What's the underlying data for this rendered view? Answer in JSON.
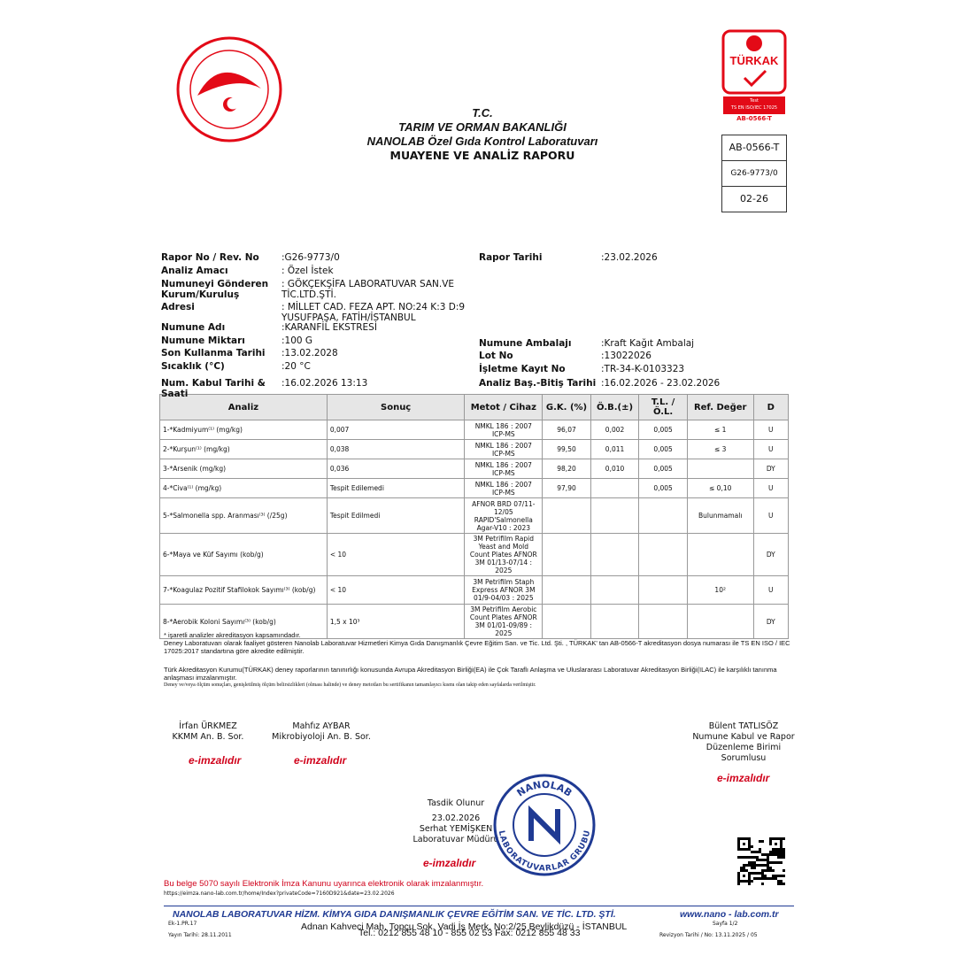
{
  "header": {
    "t_c": "T.C.",
    "ministry": "TARIM VE ORMAN BAKANLIĞI",
    "lab": "NANOLAB Özel Gıda Kontrol Laboratuvarı",
    "report_title": "MUAYENE VE ANALİZ RAPORU"
  },
  "turkak": {
    "name": "TÜRKAK",
    "test": "Test",
    "standard": "TS EN ISO/IEC 17025",
    "code": "AB-0566-T"
  },
  "code_box": [
    "AB-0566-T",
    "G26-9773/0",
    "02-26"
  ],
  "info_left": [
    {
      "label": "Rapor No / Rev. No",
      "value": ":G26-9773/0"
    },
    {
      "label": "Analiz Amacı",
      "value": ": Özel İstek"
    },
    {
      "label": "Numuneyi Gönderen Kurum/Kuruluş",
      "value": ": GÖKÇEKŞİFA LABORATUVAR SAN.VE TİC.LTD.ŞTİ."
    },
    {
      "label": "Adresi",
      "value": ": MİLLET CAD. FEZA APT. NO:24 K:3 D:9 YUSUFPAŞA, FATİH/İSTANBUL"
    },
    {
      "label": "Numune Adı",
      "value": ":KARANFİL EKSTRESİ"
    },
    {
      "label": "Numune Miktarı",
      "value": ":100 G"
    },
    {
      "label": "Son Kullanma Tarihi",
      "value": ":13.02.2028"
    },
    {
      "label": "Sıcaklık (°C)",
      "value": ":20 °C"
    },
    {
      "label": "Num. Kabul Tarihi & Saati",
      "value": ":16.02.2026 13:13"
    }
  ],
  "info_right": [
    {
      "label": "Rapor Tarihi",
      "value": ":23.02.2026"
    },
    {
      "label": "Numune Ambalajı",
      "value": ":Kraft Kağıt Ambalaj"
    },
    {
      "label": "Lot No",
      "value": ":13022026"
    },
    {
      "label": "İşletme Kayıt No",
      "value": ":TR-34-K-0103323"
    },
    {
      "label": "Analiz Baş.-Bitiş Tarihi",
      "value": ":16.02.2026 - 23.02.2026"
    }
  ],
  "table": {
    "headers": [
      "Analiz",
      "Sonuç",
      "Metot / Cihaz",
      "G.K. (%)",
      "Ö.B.(±)",
      "T.L. / Ö.L.",
      "Ref. Değer",
      "D"
    ],
    "rows": [
      [
        "1-*Kadmiyum⁽¹⁾ (mg/kg)",
        "0,007",
        "NMKL 186 : 2007 ICP-MS",
        "96,07",
        "0,002",
        "0,005",
        "≤ 1",
        "U"
      ],
      [
        "2-*Kurşun⁽¹⁾ (mg/kg)",
        "0,038",
        "NMKL 186 : 2007 ICP-MS",
        "99,50",
        "0,011",
        "0,005",
        "≤ 3",
        "U"
      ],
      [
        "3-*Arsenik (mg/kg)",
        "0,036",
        "NMKL 186 : 2007 ICP-MS",
        "98,20",
        "0,010",
        "0,005",
        null,
        "DY"
      ],
      [
        "4-*Civa⁽¹⁾ (mg/kg)",
        "Tespit Edilemedi",
        "NMKL 186 : 2007 ICP-MS",
        "97,90",
        null,
        "0,005",
        "≤ 0,10",
        "U"
      ],
      [
        "5-*Salmonella spp. Aranması⁽³⁾ (/25g)",
        "Tespit Edilmedi",
        "AFNOR BRD 07/11-12/05 RAPID'Salmonella Agar-V10 : 2023",
        null,
        null,
        null,
        "Bulunmamalı",
        "U"
      ],
      [
        "6-*Maya ve Küf Sayımı (kob/g)",
        "< 10",
        "3M Petrifilm Rapid Yeast and Mold Count Plates AFNOR 3M 01/13-07/14 : 2025",
        null,
        null,
        null,
        null,
        "DY"
      ],
      [
        "7-*Koagulaz Pozitif Stafilokok Sayımı⁽³⁾ (kob/g)",
        "< 10",
        "3M Petrifilm Staph Express AFNOR 3M 01/9-04/03 : 2025",
        null,
        null,
        null,
        "10²",
        "U"
      ],
      [
        "8-*Aerobik Koloni Sayımı⁽³⁾ (kob/g)",
        "1,5 x 10³",
        "3M Petrifilm Aerobic Count Plates AFNOR 3M 01/01-09/89 : 2025",
        null,
        null,
        null,
        null,
        "DY"
      ]
    ]
  },
  "notes": [
    "* işaretli analizler akreditasyon kapsamındadır.",
    "Deney Laboratuvarı olarak faaliyet gösteren Nanolab Laboratuvar Hizmetleri Kimya Gıda Danışmanlık Çevre Eğitim San. ve Tic. Ltd. Şti. , TÜRKAK' tan AB-0566-T akreditasyon dosya numarası ile TS EN ISO / IEC 17025:2017 standartına göre akredite edilmiştir.",
    "Türk Akreditasyon Kurumu(TÜRKAK) deney raporlarının tanınırlığı konusunda Avrupa Akreditasyon Birliği(EA) ile Çok Taraflı Anlaşma ve Uluslararası Laboratuvar Akreditasyon Birliği(ILAC) ile karşılıklı tanınma anlaşması imzalanmıştır.",
    "Deney ve/veya ölçüm sonuçları, genişletilmiş ölçüm belirsizlikleri (olması halinde) ve deney metotları bu sertifikanın tamamlayıcı kısmı olan takip eden sayfalarda verilmiştir."
  ],
  "signatures": [
    {
      "name": "İrfan ÜRKMEZ",
      "role": "KKMM An. B. Sor.",
      "esign": "e-imzalıdır"
    },
    {
      "name": "Mahfız AYBAR",
      "role": "Mikrobiyoloji An. B. Sor.",
      "esign": "e-imzalıdır"
    },
    {
      "name": "Bülent TATLISÖZ",
      "role": "Numune Kabul ve Rapor Düzenleme Birimi Sorumlusu",
      "esign": "e-imzalıdır"
    }
  ],
  "approval": {
    "text": "Tasdik Olunur",
    "date": "23.02.2026",
    "name": "Serhat YEMİŞKEN",
    "role": "Laboratuvar Müdürü",
    "esign": "e-imzalıdır"
  },
  "stamp": {
    "top": "NANOLAB",
    "bottom": "LABORATUVARLAR GRUBU"
  },
  "footer": {
    "notice": "Bu belge 5070 sayılı Elektronik İmza Kanunu uyarınca elektronik olarak imzalanmıştır.",
    "url": "https://eimza.nano-lab.com.tr/home/Index?privateCode=7160D921&date=23.02.2026",
    "company": "NANOLAB LABORATUVAR HİZM. KİMYA GIDA DANIŞMANLIK ÇEVRE EĞİTİM SAN. VE TİC. LTD. ŞTİ.",
    "website": "www.nano - lab.com.tr",
    "form_code": "Ek-1.PR.17",
    "publish_date": "Yayın Tarihi: 28.11.2011",
    "address": "Adnan Kahveci Mah. Topçu Sok. Vadi İş Merk. No:2/25 Beylikdüzü - İSTANBUL",
    "phone": "Tel.: 0212 855 48 10 - 855 02 53 Fax: 0212 855 48 33",
    "page": "Sayfa 1/2",
    "revision": "Revizyon Tarihi / No: 13.11.2025 / 05"
  }
}
